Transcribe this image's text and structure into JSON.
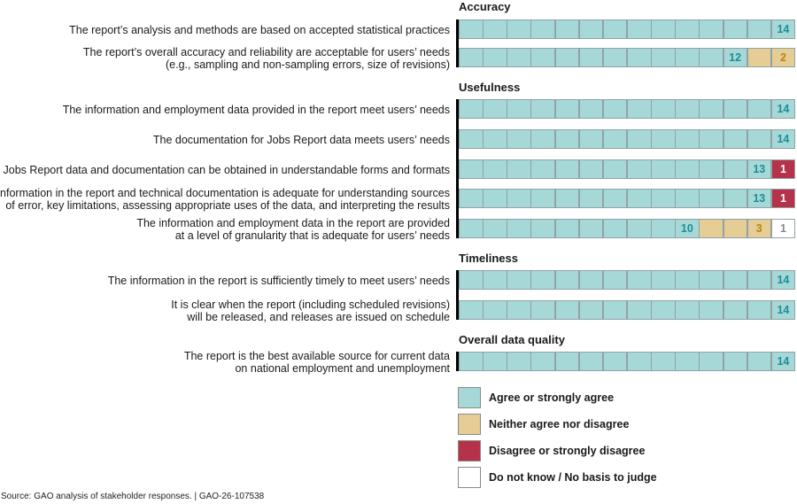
{
  "chart_data": {
    "type": "bar",
    "subtype": "stacked-horizontal-unit",
    "colors": {
      "agree": "#a6d8d8",
      "neither": "#e6cc95",
      "disagree": "#b5324a",
      "dont_know": "#ffffff",
      "agree_text": "#1b8f95",
      "neither_text": "#b8860b",
      "disagree_text": "#ffffff",
      "dont_know_text": "#888888"
    },
    "legend": [
      {
        "key": "agree",
        "label": "Agree or strongly agree"
      },
      {
        "key": "neither",
        "label": "Neither agree nor disagree"
      },
      {
        "key": "disagree",
        "label": "Disagree or strongly disagree"
      },
      {
        "key": "dont_know",
        "label": "Do not know / No basis to judge"
      }
    ],
    "sections": [
      {
        "title": "Accuracy",
        "rows": [
          {
            "label": [
              "The report’s analysis and methods are based on accepted statistical practices"
            ],
            "agree": 14,
            "neither": 0,
            "disagree": 0,
            "dont_know": 0
          },
          {
            "label": [
              "The report’s overall accuracy and reliability are acceptable for users’ needs",
              "(e.g., sampling and non-sampling errors, size of revisions)"
            ],
            "agree": 12,
            "neither": 2,
            "disagree": 0,
            "dont_know": 0
          }
        ]
      },
      {
        "title": "Usefulness",
        "rows": [
          {
            "label": [
              "The information and employment data provided in the report meet users’ needs"
            ],
            "agree": 14,
            "neither": 0,
            "disagree": 0,
            "dont_know": 0
          },
          {
            "label": [
              "The documentation for Jobs Report data meets users’ needs"
            ],
            "agree": 14,
            "neither": 0,
            "disagree": 0,
            "dont_know": 0
          },
          {
            "label": [
              "Jobs Report data and documentation can be obtained in understandable forms and formats"
            ],
            "agree": 13,
            "neither": 0,
            "disagree": 1,
            "dont_know": 0
          },
          {
            "label": [
              "Information in the report and technical documentation is adequate for understanding sources",
              "of error, key limitations, assessing appropriate uses of the data, and interpreting the results"
            ],
            "agree": 13,
            "neither": 0,
            "disagree": 1,
            "dont_know": 0
          },
          {
            "label": [
              "The information and employment data in the report are provided",
              "at a level of granularity that is adequate for users’ needs"
            ],
            "agree": 10,
            "neither": 3,
            "disagree": 0,
            "dont_know": 1
          }
        ]
      },
      {
        "title": "Timeliness",
        "rows": [
          {
            "label": [
              "The information in the report is sufficiently timely to meet users’ needs"
            ],
            "agree": 14,
            "neither": 0,
            "disagree": 0,
            "dont_know": 0
          },
          {
            "label": [
              "It is clear when the report (including scheduled revisions)",
              "will be released, and releases are issued on schedule"
            ],
            "agree": 14,
            "neither": 0,
            "disagree": 0,
            "dont_know": 0
          }
        ]
      },
      {
        "title": "Overall data quality",
        "rows": [
          {
            "label": [
              "The report is the best available source for current data",
              "on national employment and unemployment"
            ],
            "agree": 14,
            "neither": 0,
            "disagree": 0,
            "dont_know": 0
          }
        ]
      }
    ]
  },
  "source": "Source: GAO analysis of stakeholder responses.  |  GAO-26-107538"
}
